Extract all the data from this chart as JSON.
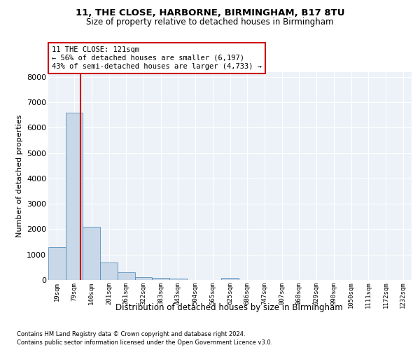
{
  "title_line1": "11, THE CLOSE, HARBORNE, BIRMINGHAM, B17 8TU",
  "title_line2": "Size of property relative to detached houses in Birmingham",
  "xlabel": "Distribution of detached houses by size in Birmingham",
  "ylabel": "Number of detached properties",
  "annotation_line1": "11 THE CLOSE: 121sqm",
  "annotation_line2": "← 56% of detached houses are smaller (6,197)",
  "annotation_line3": "43% of semi-detached houses are larger (4,733) →",
  "footer_line1": "Contains HM Land Registry data © Crown copyright and database right 2024.",
  "footer_line2": "Contains public sector information licensed under the Open Government Licence v3.0.",
  "bar_color": "#c8d8e8",
  "bar_edge_color": "#5a90bb",
  "vline_color": "#cc0000",
  "annotation_box_edge": "#cc0000",
  "bg_color": "#edf2f8",
  "grid_color": "#ffffff",
  "categories": [
    "19sqm",
    "79sqm",
    "140sqm",
    "201sqm",
    "261sqm",
    "322sqm",
    "383sqm",
    "443sqm",
    "504sqm",
    "565sqm",
    "625sqm",
    "686sqm",
    "747sqm",
    "807sqm",
    "868sqm",
    "929sqm",
    "990sqm",
    "1050sqm",
    "1111sqm",
    "1172sqm",
    "1232sqm"
  ],
  "values": [
    1300,
    6600,
    2100,
    700,
    300,
    120,
    90,
    60,
    0,
    0,
    80,
    0,
    0,
    0,
    0,
    0,
    0,
    0,
    0,
    0,
    0
  ],
  "vline_position": 1.35,
  "ylim_max": 8200,
  "yticks": [
    0,
    1000,
    2000,
    3000,
    4000,
    5000,
    6000,
    7000,
    8000
  ]
}
